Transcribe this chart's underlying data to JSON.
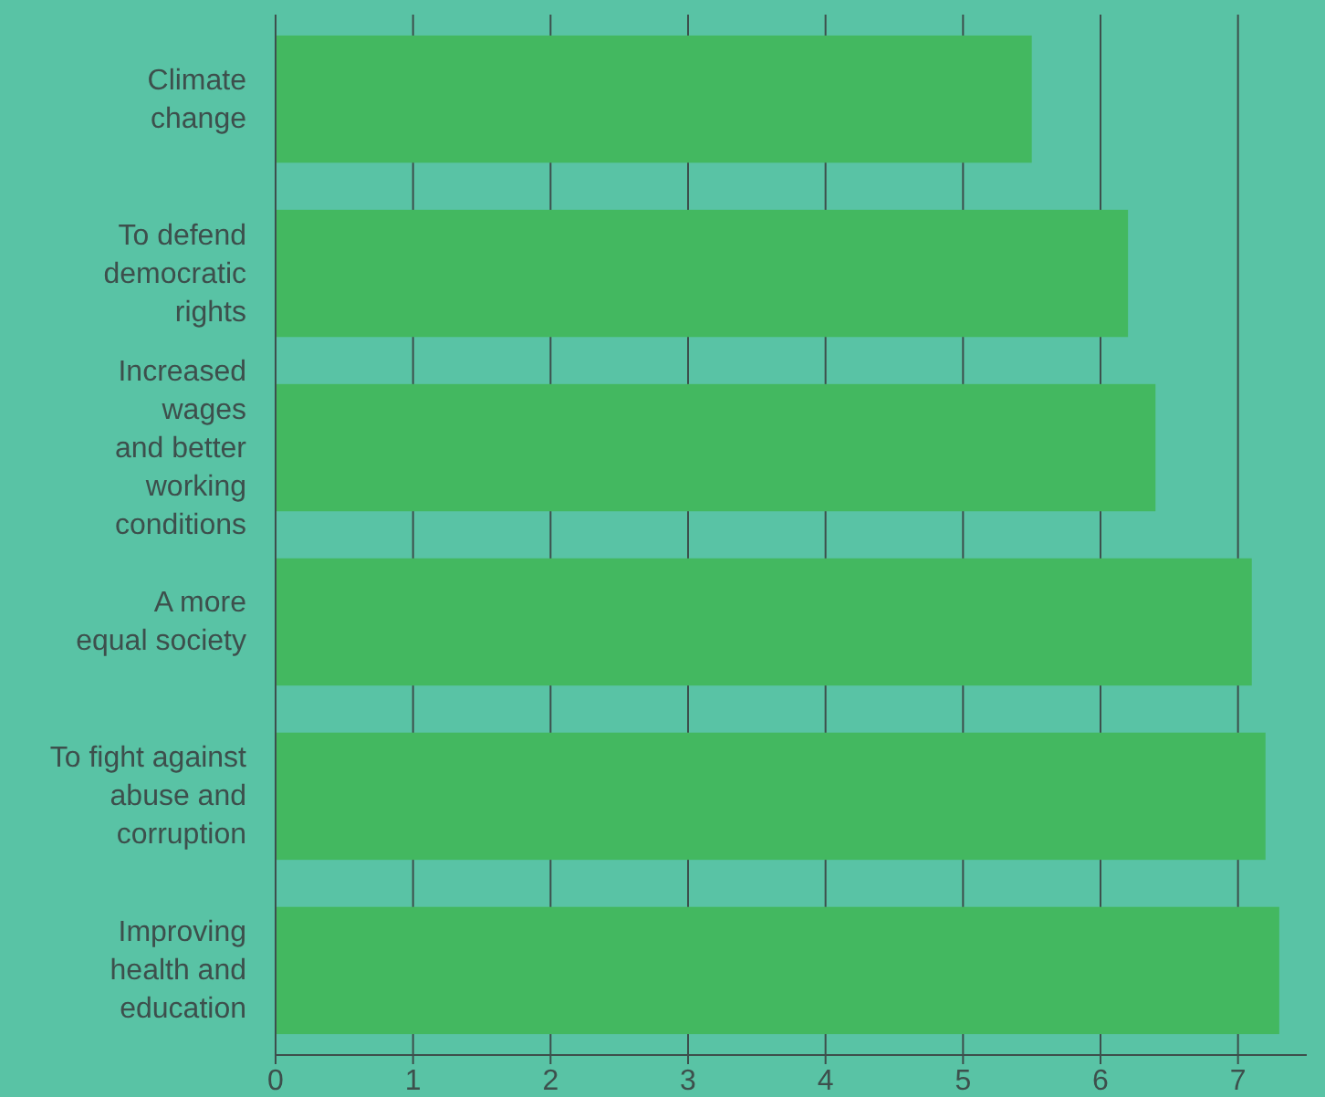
{
  "chart_data": {
    "type": "bar",
    "orientation": "horizontal",
    "categories": [
      "Climate\nchange",
      "To defend\ndemocratic\nrights",
      "Increased\nwages\nand better\nworking\nconditions",
      "A more\nequal society",
      "To fight against\nabuse and\ncorruption",
      "Improving\nhealth and\neducation"
    ],
    "values": [
      5.5,
      6.2,
      6.4,
      7.1,
      7.2,
      7.3
    ],
    "color": "#43b860",
    "xlim": [
      0,
      7.5
    ],
    "xticks": [
      0,
      1,
      2,
      3,
      4,
      5,
      6,
      7
    ],
    "grid": "x"
  }
}
